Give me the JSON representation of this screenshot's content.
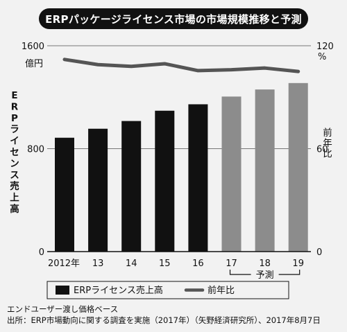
{
  "chart_data": {
    "type": "bar",
    "title": "ERPパッケージライセンス市場の市場規模推移と予測",
    "categories": [
      "2012年",
      "13",
      "14",
      "15",
      "16",
      "17",
      "18",
      "19"
    ],
    "forecast_label": "予測",
    "forecast_from_index": 5,
    "series": [
      {
        "name": "ERPライセンス売上高",
        "type": "bar",
        "axis": "left",
        "color": "#111111",
        "forecast_color": "#8c8c8c",
        "values": [
          885,
          955,
          1015,
          1095,
          1145,
          1205,
          1260,
          1310
        ]
      },
      {
        "name": "前年比",
        "type": "line",
        "axis": "right",
        "color": "#555555",
        "values": [
          112,
          109,
          108,
          109.5,
          105.5,
          106,
          107,
          105
        ]
      }
    ],
    "left_axis": {
      "label": "ERPライセンス売上高",
      "unit": "億円",
      "ticks": [
        "1600",
        "800",
        "0"
      ],
      "ylim": [
        0,
        1600
      ]
    },
    "right_axis": {
      "label": "前年比",
      "unit": "%",
      "ticks": [
        "120",
        "60",
        "0"
      ],
      "ylim": [
        0,
        120
      ]
    },
    "grid": "horizontal lines at tick values",
    "legend_position": "bottom"
  },
  "notes": {
    "line1": "エンドユーザー渡し価格ベース",
    "line2": "出所：ERP市場動向に関する調査を実施（2017年）（矢野経済研究所）、2017年8月7日"
  }
}
